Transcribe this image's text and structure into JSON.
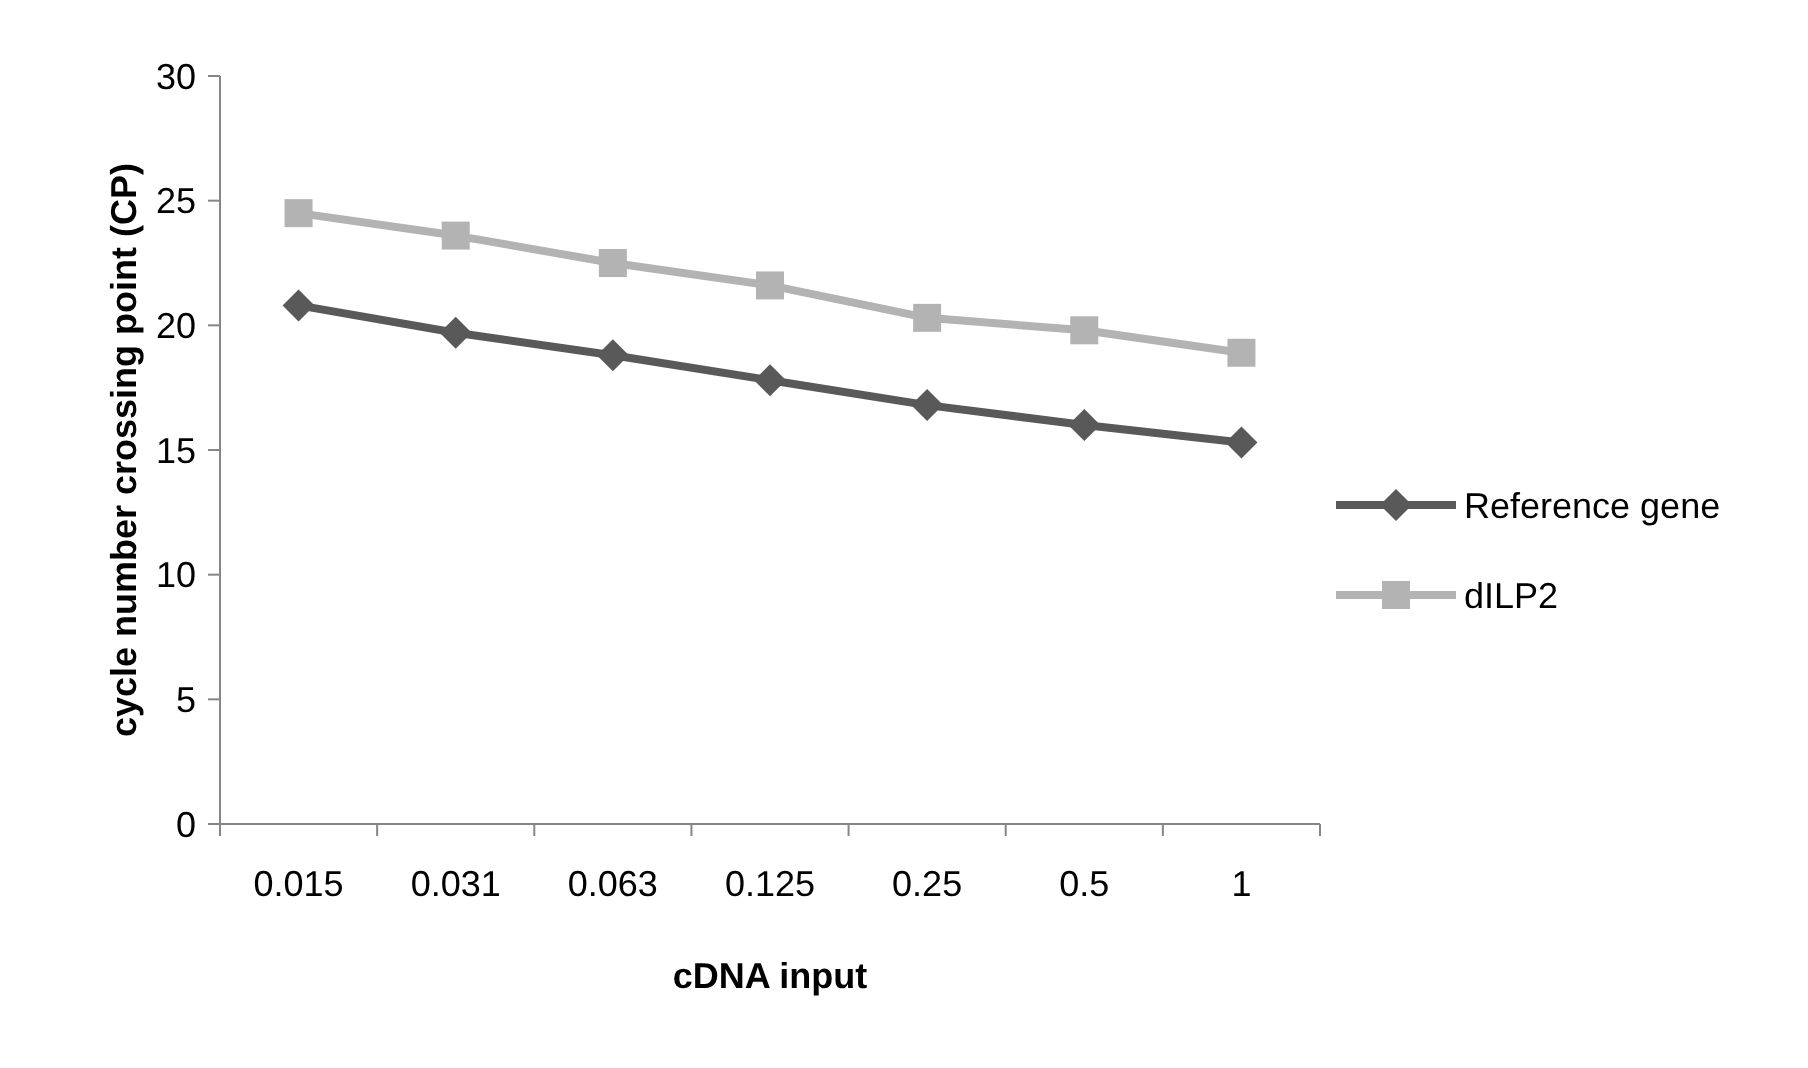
{
  "chart_data": {
    "type": "line",
    "xlabel": "cDNA input",
    "ylabel": "cycle number crossing point (CP)",
    "categories": [
      "0.015",
      "0.031",
      "0.063",
      "0.125",
      "0.25",
      "0.5",
      "1"
    ],
    "series": [
      {
        "name": "Reference gene",
        "color": "#595959",
        "marker": "diamond",
        "values": [
          20.8,
          19.7,
          18.8,
          17.8,
          16.8,
          16.0,
          15.3
        ]
      },
      {
        "name": "dILP2",
        "color": "#b3b3b3",
        "marker": "square",
        "values": [
          24.5,
          23.6,
          22.5,
          21.6,
          20.3,
          19.8,
          18.9
        ]
      }
    ],
    "ylim": [
      0,
      30
    ],
    "yticks": [
      0,
      5,
      10,
      15,
      20,
      25,
      30
    ],
    "grid": false,
    "legend": "right"
  }
}
